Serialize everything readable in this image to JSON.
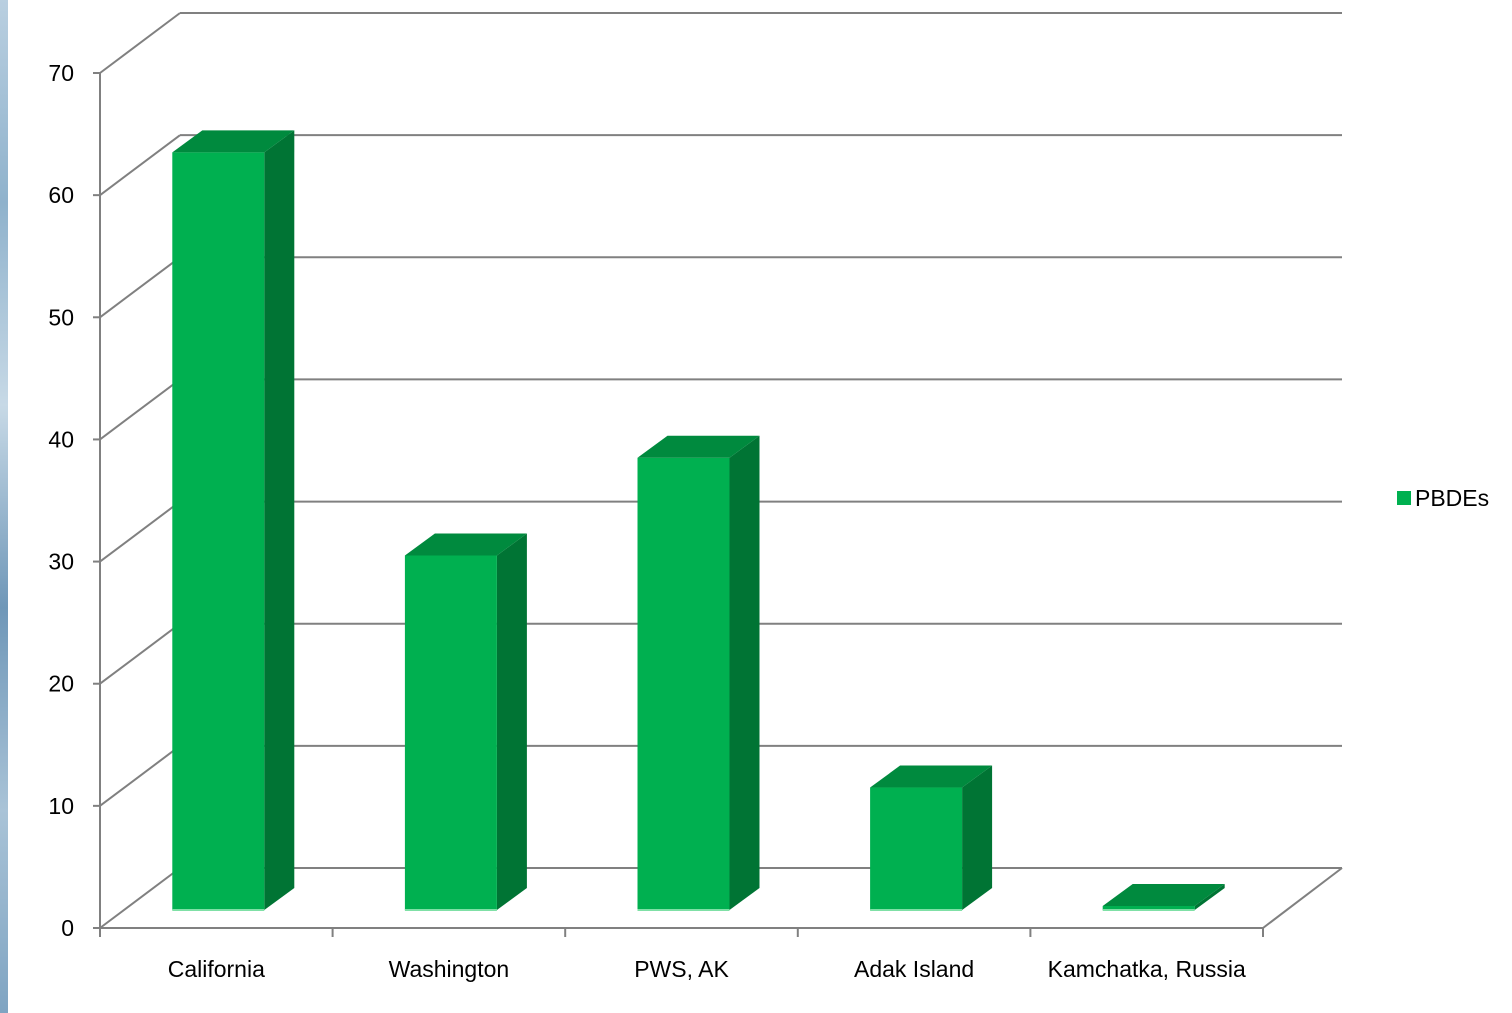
{
  "chart_data": {
    "type": "bar",
    "style": "3d-column",
    "categories": [
      "California",
      "Washington",
      "PWS, AK",
      "Adak Island",
      "Kamchatka, Russia"
    ],
    "series": [
      {
        "name": "PBDEs",
        "values": [
          63.5,
          30.5,
          38.5,
          11.5,
          0.5
        ],
        "color": "#00b050",
        "side_color": "#007434",
        "top_color": "#008a3e"
      }
    ],
    "ylim": [
      0,
      70
    ],
    "yticks": [
      0,
      10,
      20,
      30,
      40,
      50,
      60,
      70
    ],
    "grid": true,
    "legend_position": "right",
    "title": "",
    "xlabel": "",
    "ylabel": ""
  },
  "colors": {
    "gridline": "#808080",
    "axis": "#808080",
    "background": "#ffffff"
  }
}
